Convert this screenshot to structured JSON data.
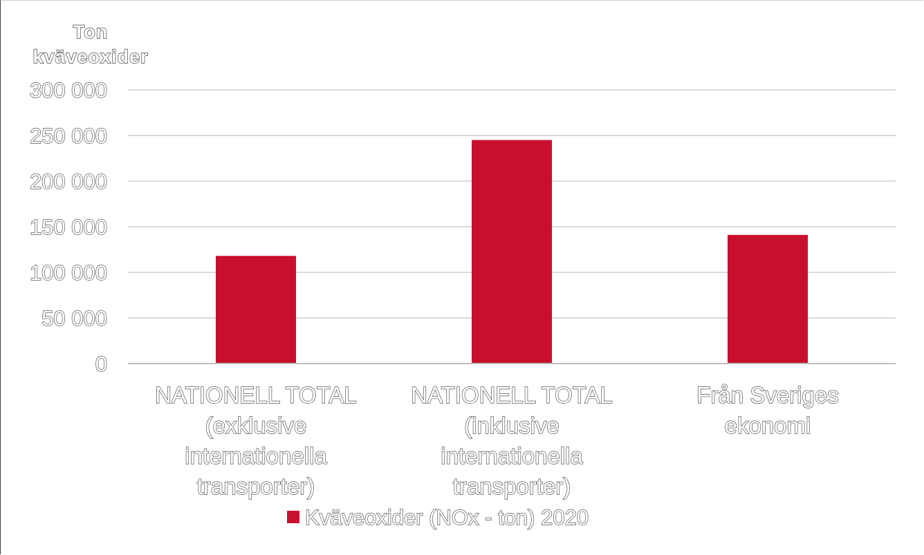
{
  "chart_data": {
    "type": "bar",
    "ylabel": "Ton kväveoxider",
    "ylabel_lines": [
      "Ton",
      "kväveoxider"
    ],
    "xlabel": "",
    "ylim": [
      0,
      300000
    ],
    "yticks": [
      0,
      50000,
      100000,
      150000,
      200000,
      250000,
      300000
    ],
    "ytick_labels": [
      "0",
      "50 000",
      "100 000",
      "150 000",
      "200 000",
      "250 000",
      "300 000"
    ],
    "grid": true,
    "legend_position": "bottom",
    "categories": [
      "NATIONELL TOTAL (exklusive internationella transporter)",
      "NATIONELL TOTAL (inklusive internationella transporter)",
      "Från Sveriges ekonomi"
    ],
    "category_lines": [
      [
        "NATIONELL TOTAL",
        "(exklusive",
        "internationella",
        "transporter)"
      ],
      [
        "NATIONELL TOTAL",
        "(inklusive",
        "internationella",
        "transporter)"
      ],
      [
        "Från Sveriges",
        "ekonomi"
      ]
    ],
    "series": [
      {
        "name": "Kväveoxider (NOx - ton) 2020",
        "color": "#C8102E",
        "values": [
          118000,
          245000,
          141000
        ]
      }
    ]
  },
  "colors": {
    "bar": "#C8102E",
    "grid": "#d9d9d9",
    "axis": "#bfbfbf"
  }
}
